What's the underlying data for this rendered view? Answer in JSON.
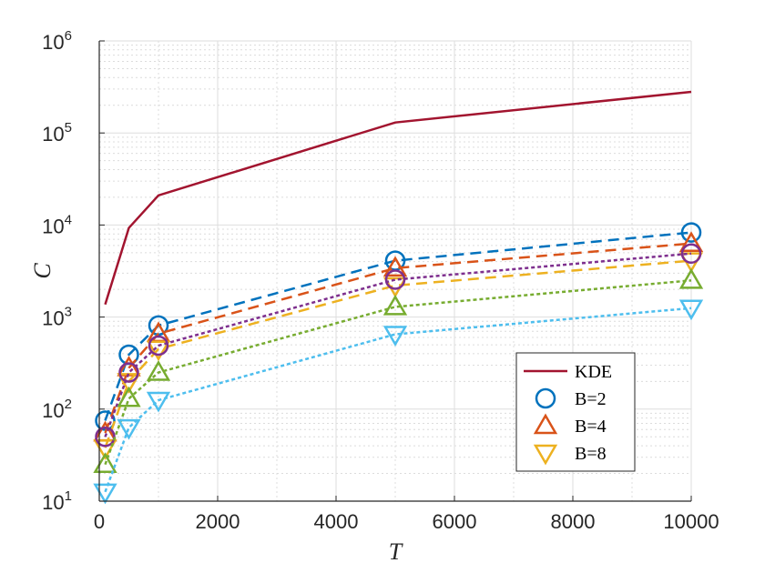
{
  "chart_data": {
    "type": "line",
    "title": "",
    "xlabel": "T",
    "ylabel": "C",
    "xlim": [
      0,
      10000
    ],
    "ylim": [
      10,
      1000000
    ],
    "yscale": "log",
    "grid": "on (major solid, minor dotted)",
    "legend_placement": "lower-right",
    "x_ticks": [
      "0",
      "2000",
      "4000",
      "6000",
      "8000",
      "10000"
    ],
    "y_ticks": [
      {
        "base": "10",
        "exp": "1"
      },
      {
        "base": "10",
        "exp": "2"
      },
      {
        "base": "10",
        "exp": "3"
      },
      {
        "base": "10",
        "exp": "4"
      },
      {
        "base": "10",
        "exp": "5"
      },
      {
        "base": "10",
        "exp": "6"
      }
    ],
    "x": [
      100,
      500,
      1000,
      5000,
      10000
    ],
    "series": [
      {
        "name": "KDE",
        "color": "#A2142F",
        "style": "solid",
        "marker": "none",
        "values": [
          1370,
          9300,
          21000,
          130000,
          280000
        ]
      },
      {
        "name": "B=2",
        "color": "#0072BD",
        "style": "dashed",
        "marker": "circle",
        "values": [
          75,
          390,
          810,
          4100,
          8300
        ]
      },
      {
        "name": "B=4",
        "color": "#D95319",
        "style": "dashed",
        "marker": "triangle-up",
        "values": [
          55,
          280,
          660,
          3400,
          6300
        ]
      },
      {
        "name": "B=8",
        "color": "#EDB120",
        "style": "dashed",
        "marker": "triangle-down",
        "values": [
          38,
          200,
          450,
          2200,
          4100
        ]
      },
      {
        "color": "#7E2F8E",
        "style": "dotted",
        "marker": "circle",
        "values": [
          50,
          250,
          490,
          2550,
          4900
        ]
      },
      {
        "color": "#77AC30",
        "style": "dotted",
        "marker": "triangle-up",
        "values": [
          25,
          130,
          250,
          1290,
          2500
        ]
      },
      {
        "color": "#4DBEEE",
        "style": "dotted",
        "marker": "triangle-down",
        "values": [
          12.6,
          63,
          125,
          650,
          1250
        ]
      }
    ]
  }
}
